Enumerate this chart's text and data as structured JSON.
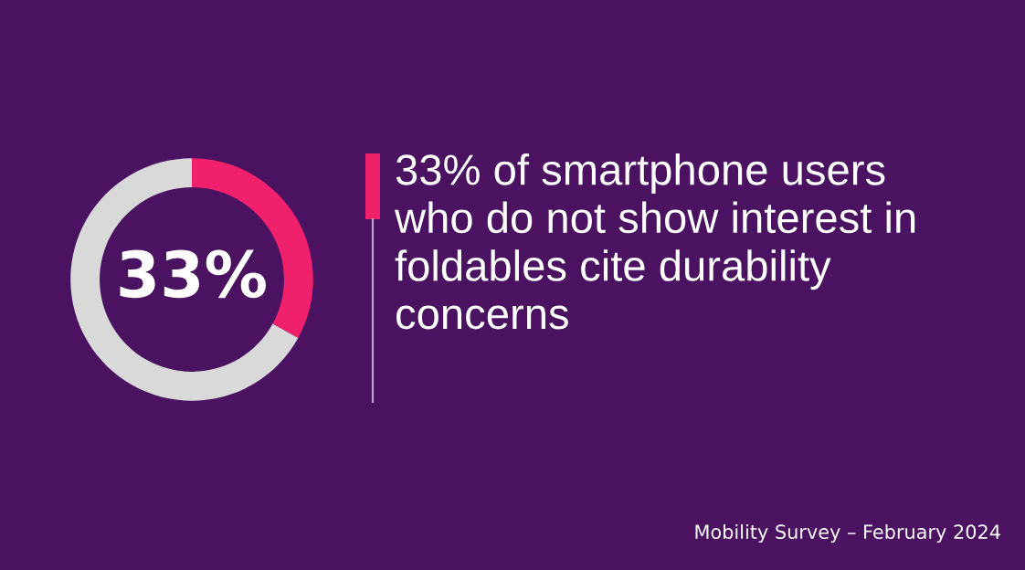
{
  "chart_data": {
    "type": "donut",
    "title": "33% of smartphone users\nwho do not show interest in\nfoldables cite durability\nconcerns",
    "categories": [
      null,
      null
    ],
    "values": [
      33,
      67
    ],
    "colors": [
      "#f0206c",
      "#d9d9d9"
    ],
    "value_labels": [
      "33%",
      null
    ],
    "legend": false,
    "annotations": [
      "Mobility Survey – February 2024"
    ]
  }
}
